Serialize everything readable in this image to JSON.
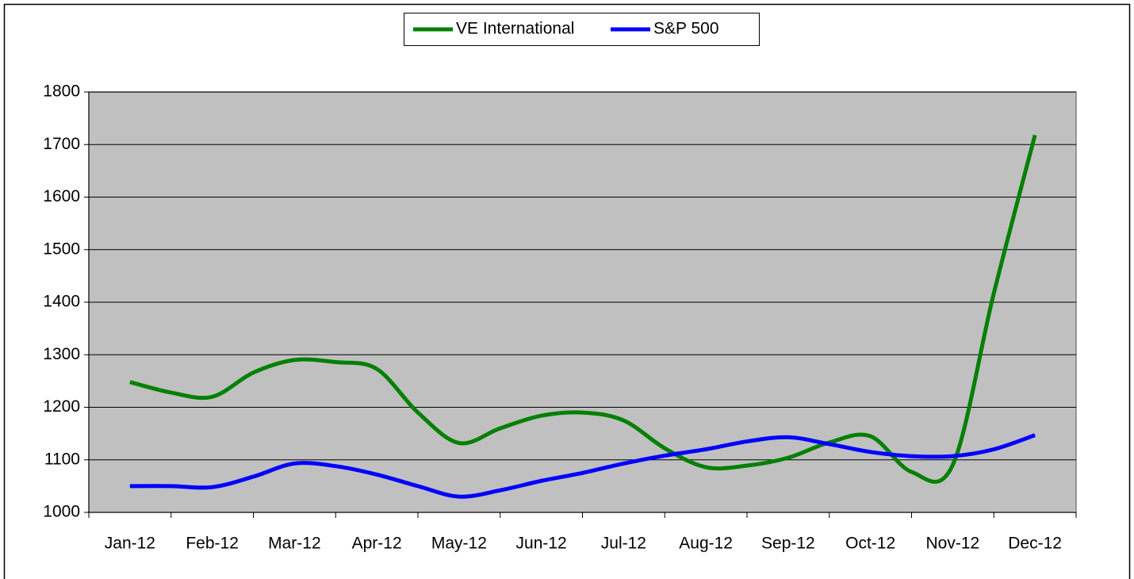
{
  "chart_data": {
    "type": "line",
    "categories": [
      "Jan-12",
      null,
      "Feb-12",
      null,
      "Mar-12",
      null,
      "Apr-12",
      null,
      "May-12",
      null,
      "Jun-12",
      null,
      "Jul-12",
      null,
      "Aug-12",
      null,
      "Sep-12",
      null,
      "Oct-12",
      null,
      "Nov-12",
      null,
      "Dec-12"
    ],
    "series": [
      {
        "name": "VE International",
        "color": "#008000",
        "values": [
          1248,
          1228,
          1220,
          1266,
          1290,
          1286,
          1273,
          1190,
          1132,
          1160,
          1184,
          1190,
          1175,
          1122,
          1086,
          1089,
          1104,
          1133,
          1145,
          1077,
          1090,
          1417,
          1718
        ]
      },
      {
        "name": "S&P 500",
        "color": "#0000ff",
        "values": [
          1050,
          1050,
          1048,
          1068,
          1093,
          1088,
          1072,
          1050,
          1030,
          1042,
          1060,
          1075,
          1093,
          1108,
          1120,
          1135,
          1143,
          1130,
          1115,
          1107,
          1107,
          1120,
          1147
        ]
      }
    ],
    "ylim": [
      1000,
      1800
    ],
    "yticks": [
      1000,
      1100,
      1200,
      1300,
      1400,
      1500,
      1600,
      1700,
      1800
    ],
    "grid": true,
    "smooth": true,
    "legend": "top",
    "plot_background": "#c0c0c0"
  }
}
